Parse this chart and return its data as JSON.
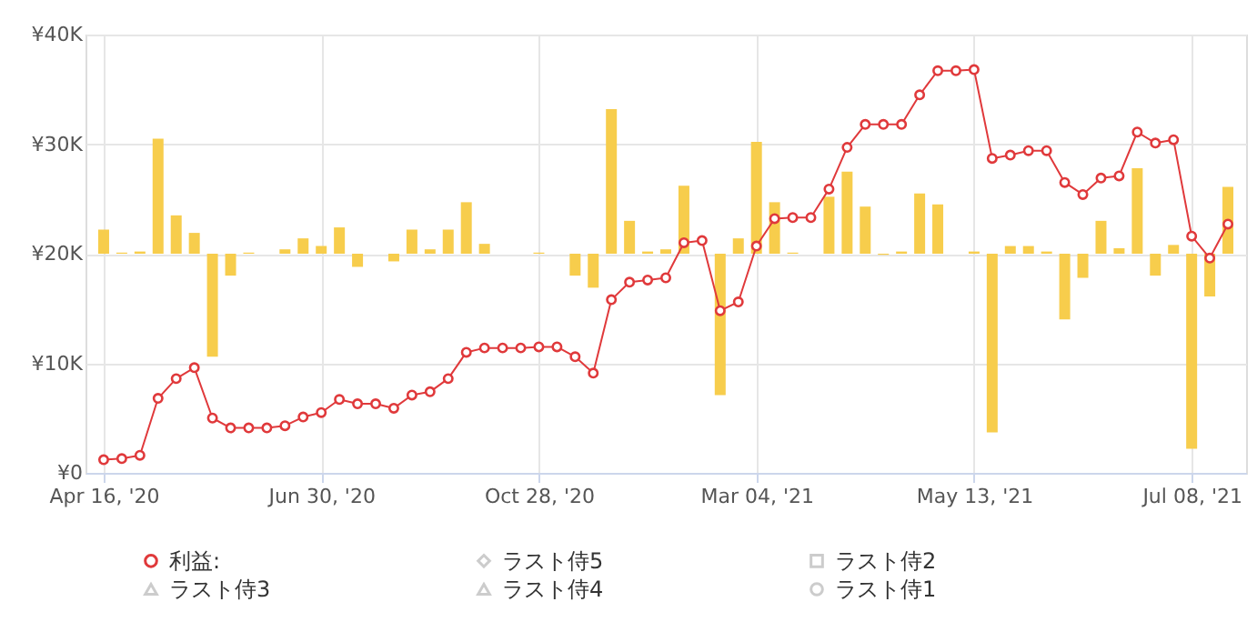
{
  "chart_data": {
    "type": "line",
    "categories": [
      "Apr 16, '20",
      null,
      null,
      null,
      null,
      null,
      null,
      null,
      null,
      null,
      null,
      null,
      "Jun 30, '20",
      null,
      null,
      null,
      null,
      null,
      null,
      null,
      null,
      null,
      null,
      null,
      "Oct 28, '20",
      null,
      null,
      null,
      null,
      null,
      null,
      null,
      null,
      null,
      null,
      null,
      "Mar 04, '21",
      null,
      null,
      null,
      null,
      null,
      null,
      null,
      null,
      null,
      null,
      null,
      "May 13, '21",
      null,
      null,
      null,
      null,
      null,
      null,
      null,
      null,
      null,
      null,
      null,
      "Jul 08, '21",
      null,
      null
    ],
    "series": [
      {
        "type": "bar",
        "color": "#f7cd4c",
        "base": [
          20000,
          20000,
          20000,
          20000,
          20000,
          20000,
          20000,
          20000,
          20000,
          null,
          20000,
          20000,
          20000,
          20000,
          20000,
          null,
          20000,
          20000,
          20000,
          20000,
          20000,
          20000,
          null,
          null,
          20000,
          null,
          20000,
          20000,
          20000,
          20000,
          20000,
          20000,
          20000,
          null,
          20000,
          20000,
          20000,
          20000,
          20000,
          null,
          20000,
          20000,
          20000,
          20000,
          20000,
          20000,
          20000,
          null,
          20000,
          20000,
          20000,
          20000,
          20000,
          20000,
          20000,
          20000,
          20000,
          20000,
          20000,
          20000,
          20000,
          20000,
          20000
        ],
        "values": [
          2200,
          100,
          200,
          10500,
          3500,
          1900,
          -9400,
          -2000,
          100,
          null,
          400,
          1400,
          700,
          2400,
          -1200,
          null,
          -700,
          2200,
          400,
          2200,
          4700,
          900,
          null,
          null,
          100,
          null,
          -2000,
          -3100,
          13200,
          3000,
          200,
          400,
          6200,
          null,
          -12900,
          1400,
          10200,
          4700,
          100,
          null,
          5200,
          7500,
          4300,
          -100,
          200,
          5500,
          4500,
          null,
          200,
          -16300,
          700,
          700,
          200,
          -6000,
          -2200,
          3000,
          500,
          7800,
          -2000,
          800,
          -17800,
          -3900,
          6100
        ]
      },
      {
        "name": "利益:",
        "color": "#e0393b",
        "marker": "circle",
        "values": [
          1200,
          1300,
          1600,
          6800,
          8600,
          9600,
          5000,
          4100,
          4100,
          4100,
          4300,
          5100,
          5500,
          6700,
          6300,
          6300,
          5900,
          7100,
          7400,
          8600,
          11000,
          11400,
          11400,
          11400,
          11500,
          11500,
          10600,
          9100,
          15800,
          17400,
          17600,
          17800,
          21000,
          21200,
          14800,
          15600,
          20700,
          23200,
          23300,
          23300,
          25900,
          29700,
          31800,
          31800,
          31800,
          34500,
          36700,
          36700,
          36800,
          28700,
          29000,
          29400,
          29400,
          26500,
          25400,
          26900,
          27100,
          31100,
          30100,
          30400,
          21600,
          19600,
          22700
        ]
      },
      {
        "name": "ラスト侍3",
        "color": "#cccccc",
        "marker": "triangle",
        "values": [
          null,
          null,
          null,
          null,
          null,
          null,
          null,
          null,
          null,
          null,
          null,
          null,
          null,
          null,
          null,
          null,
          null,
          null,
          null,
          null,
          null,
          null,
          null,
          null,
          null,
          null,
          null,
          null,
          null,
          null,
          null,
          null,
          null,
          null,
          null,
          null,
          null,
          null,
          null,
          null,
          null,
          null,
          null,
          null,
          null,
          null,
          null,
          null,
          null,
          null,
          null,
          null,
          null,
          null,
          null,
          null,
          null,
          null,
          null,
          null,
          null,
          null,
          null
        ]
      },
      {
        "name": "ラスト侍5",
        "color": "#cccccc",
        "marker": "diamond",
        "values": [
          null,
          null,
          null,
          null,
          null,
          null,
          null,
          null,
          null,
          null,
          null,
          null,
          null,
          null,
          null,
          null,
          null,
          null,
          null,
          null,
          null,
          null,
          null,
          null,
          null,
          null,
          null,
          null,
          null,
          null,
          null,
          null,
          null,
          null,
          null,
          null,
          null,
          null,
          null,
          null,
          null,
          null,
          null,
          null,
          null,
          null,
          null,
          null,
          null,
          null,
          null,
          null,
          null,
          null,
          null,
          null,
          null,
          null,
          null,
          null,
          null,
          null,
          null
        ]
      },
      {
        "name": "ラスト侍4",
        "color": "#cccccc",
        "marker": "triangle",
        "values": [
          null,
          null,
          null,
          null,
          null,
          null,
          null,
          null,
          null,
          null,
          null,
          null,
          null,
          null,
          null,
          null,
          null,
          null,
          null,
          null,
          null,
          null,
          null,
          null,
          null,
          null,
          null,
          null,
          null,
          null,
          null,
          null,
          null,
          null,
          null,
          null,
          null,
          null,
          null,
          null,
          null,
          null,
          null,
          null,
          null,
          null,
          null,
          null,
          null,
          null,
          null,
          null,
          null,
          null,
          null,
          null,
          null,
          null,
          null,
          null,
          null,
          null,
          null
        ]
      },
      {
        "name": "ラスト侍2",
        "color": "#cccccc",
        "marker": "square",
        "values": [
          null,
          null,
          null,
          null,
          null,
          null,
          null,
          null,
          null,
          null,
          null,
          null,
          null,
          null,
          null,
          null,
          null,
          null,
          null,
          null,
          null,
          null,
          null,
          null,
          null,
          null,
          null,
          null,
          null,
          null,
          null,
          null,
          null,
          null,
          null,
          null,
          null,
          null,
          null,
          null,
          null,
          null,
          null,
          null,
          null,
          null,
          null,
          null,
          null,
          null,
          null,
          null,
          null,
          null,
          null,
          null,
          null,
          null,
          null,
          null,
          null,
          null,
          null
        ]
      },
      {
        "name": "ラスト侍1",
        "color": "#cccccc",
        "marker": "circle",
        "values": [
          null,
          null,
          null,
          null,
          null,
          null,
          null,
          null,
          null,
          null,
          null,
          null,
          null,
          null,
          null,
          null,
          null,
          null,
          null,
          null,
          null,
          null,
          null,
          null,
          null,
          null,
          null,
          null,
          null,
          null,
          null,
          null,
          null,
          null,
          null,
          null,
          null,
          null,
          null,
          null,
          null,
          null,
          null,
          null,
          null,
          null,
          null,
          null,
          null,
          null,
          null,
          null,
          null,
          null,
          null,
          null,
          null,
          null,
          null,
          null,
          null,
          null,
          null
        ]
      }
    ],
    "ylim": [
      0,
      40000
    ],
    "yticks": [
      {
        "value": 0,
        "label": "¥0"
      },
      {
        "value": 10000,
        "label": "¥10K"
      },
      {
        "value": 20000,
        "label": "¥20K"
      },
      {
        "value": 30000,
        "label": "¥30K"
      },
      {
        "value": 40000,
        "label": "¥40K"
      }
    ],
    "grid": true,
    "legend": "bottom left"
  }
}
